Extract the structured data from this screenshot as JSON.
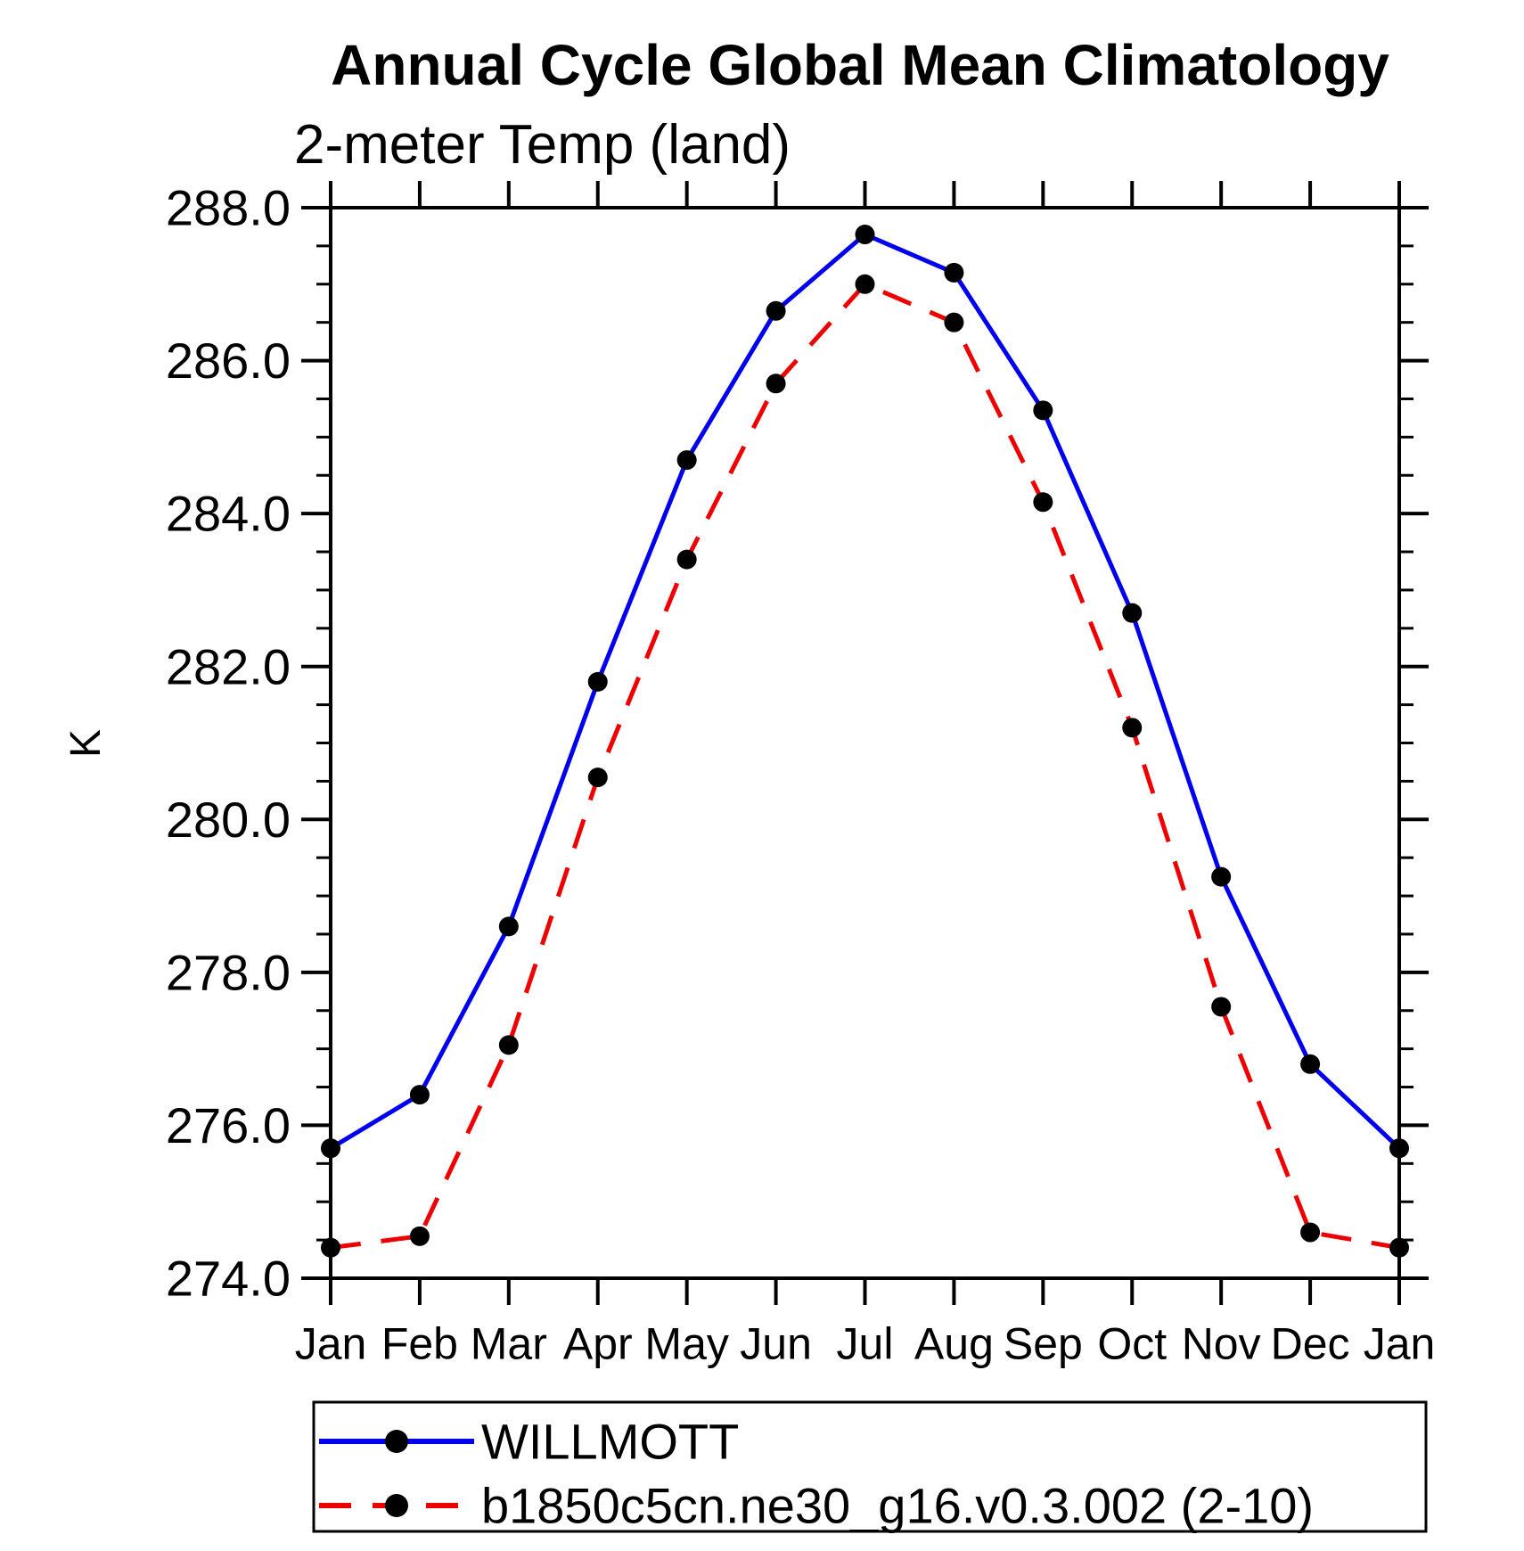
{
  "chart_data": {
    "type": "line",
    "title": "Annual Cycle Global Mean Climatology",
    "subtitle": "2-meter Temp (land)",
    "xlabel": "",
    "ylabel": "K",
    "categories": [
      "Jan",
      "Feb",
      "Mar",
      "Apr",
      "May",
      "Jun",
      "Jul",
      "Aug",
      "Sep",
      "Oct",
      "Nov",
      "Dec",
      "Jan"
    ],
    "ylim": [
      274.0,
      288.0
    ],
    "ytick_step": 2.0,
    "ytick_minor_step": 0.5,
    "ytick_labels": [
      "274.0",
      "276.0",
      "278.0",
      "280.0",
      "282.0",
      "284.0",
      "286.0",
      "288.0"
    ],
    "grid": false,
    "legend_position": "bottom-left-box",
    "series": [
      {
        "name": "WILLMOTT",
        "color": "#0000ee",
        "line_style": "solid",
        "marker": "circle",
        "marker_color": "#000000",
        "values": [
          275.7,
          276.4,
          278.6,
          281.8,
          284.7,
          286.65,
          287.65,
          287.15,
          285.35,
          282.7,
          279.25,
          276.8,
          275.7
        ]
      },
      {
        "name": "b1850c5cn.ne30_g16.v0.3.002 (2-10)",
        "color": "#ee0000",
        "line_style": "dashed",
        "marker": "circle",
        "marker_color": "#000000",
        "values": [
          274.4,
          274.55,
          277.05,
          280.55,
          283.4,
          285.7,
          287.0,
          286.5,
          284.15,
          281.2,
          277.55,
          274.6,
          274.4
        ]
      }
    ]
  }
}
